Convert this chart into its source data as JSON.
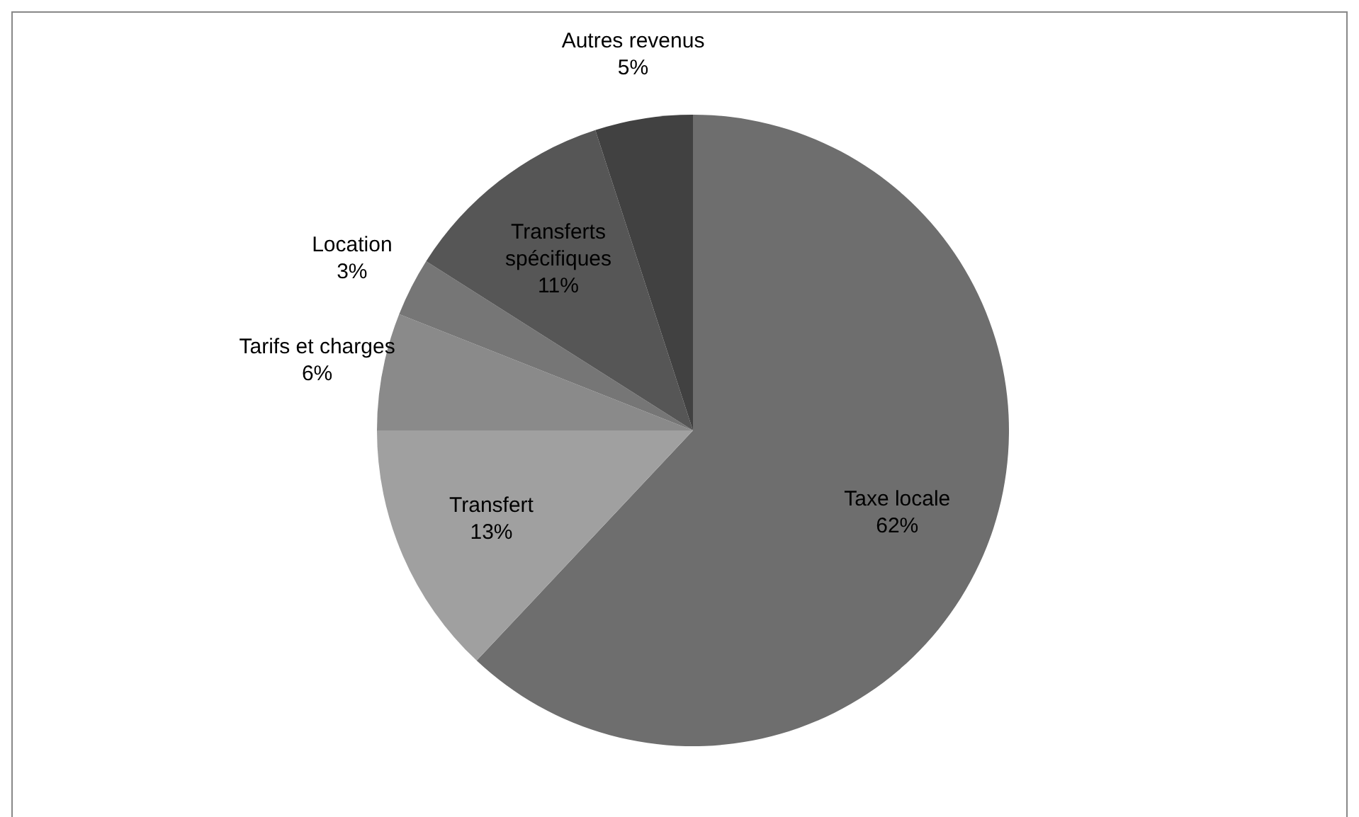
{
  "chart_data": {
    "type": "pie",
    "categories": [
      "Taxe locale",
      "Transfert",
      "Tarifs et charges",
      "Location",
      "Transferts spécifiques",
      "Autres revenus"
    ],
    "values": [
      62,
      13,
      6,
      3,
      11,
      5
    ],
    "value_labels": [
      "62%",
      "13%",
      "6%",
      "3%",
      "11%",
      "5%"
    ],
    "colors": [
      "#6e6e6e",
      "#a0a0a0",
      "#8a8a8a",
      "#767676",
      "#565656",
      "#414141"
    ],
    "legend": false
  }
}
